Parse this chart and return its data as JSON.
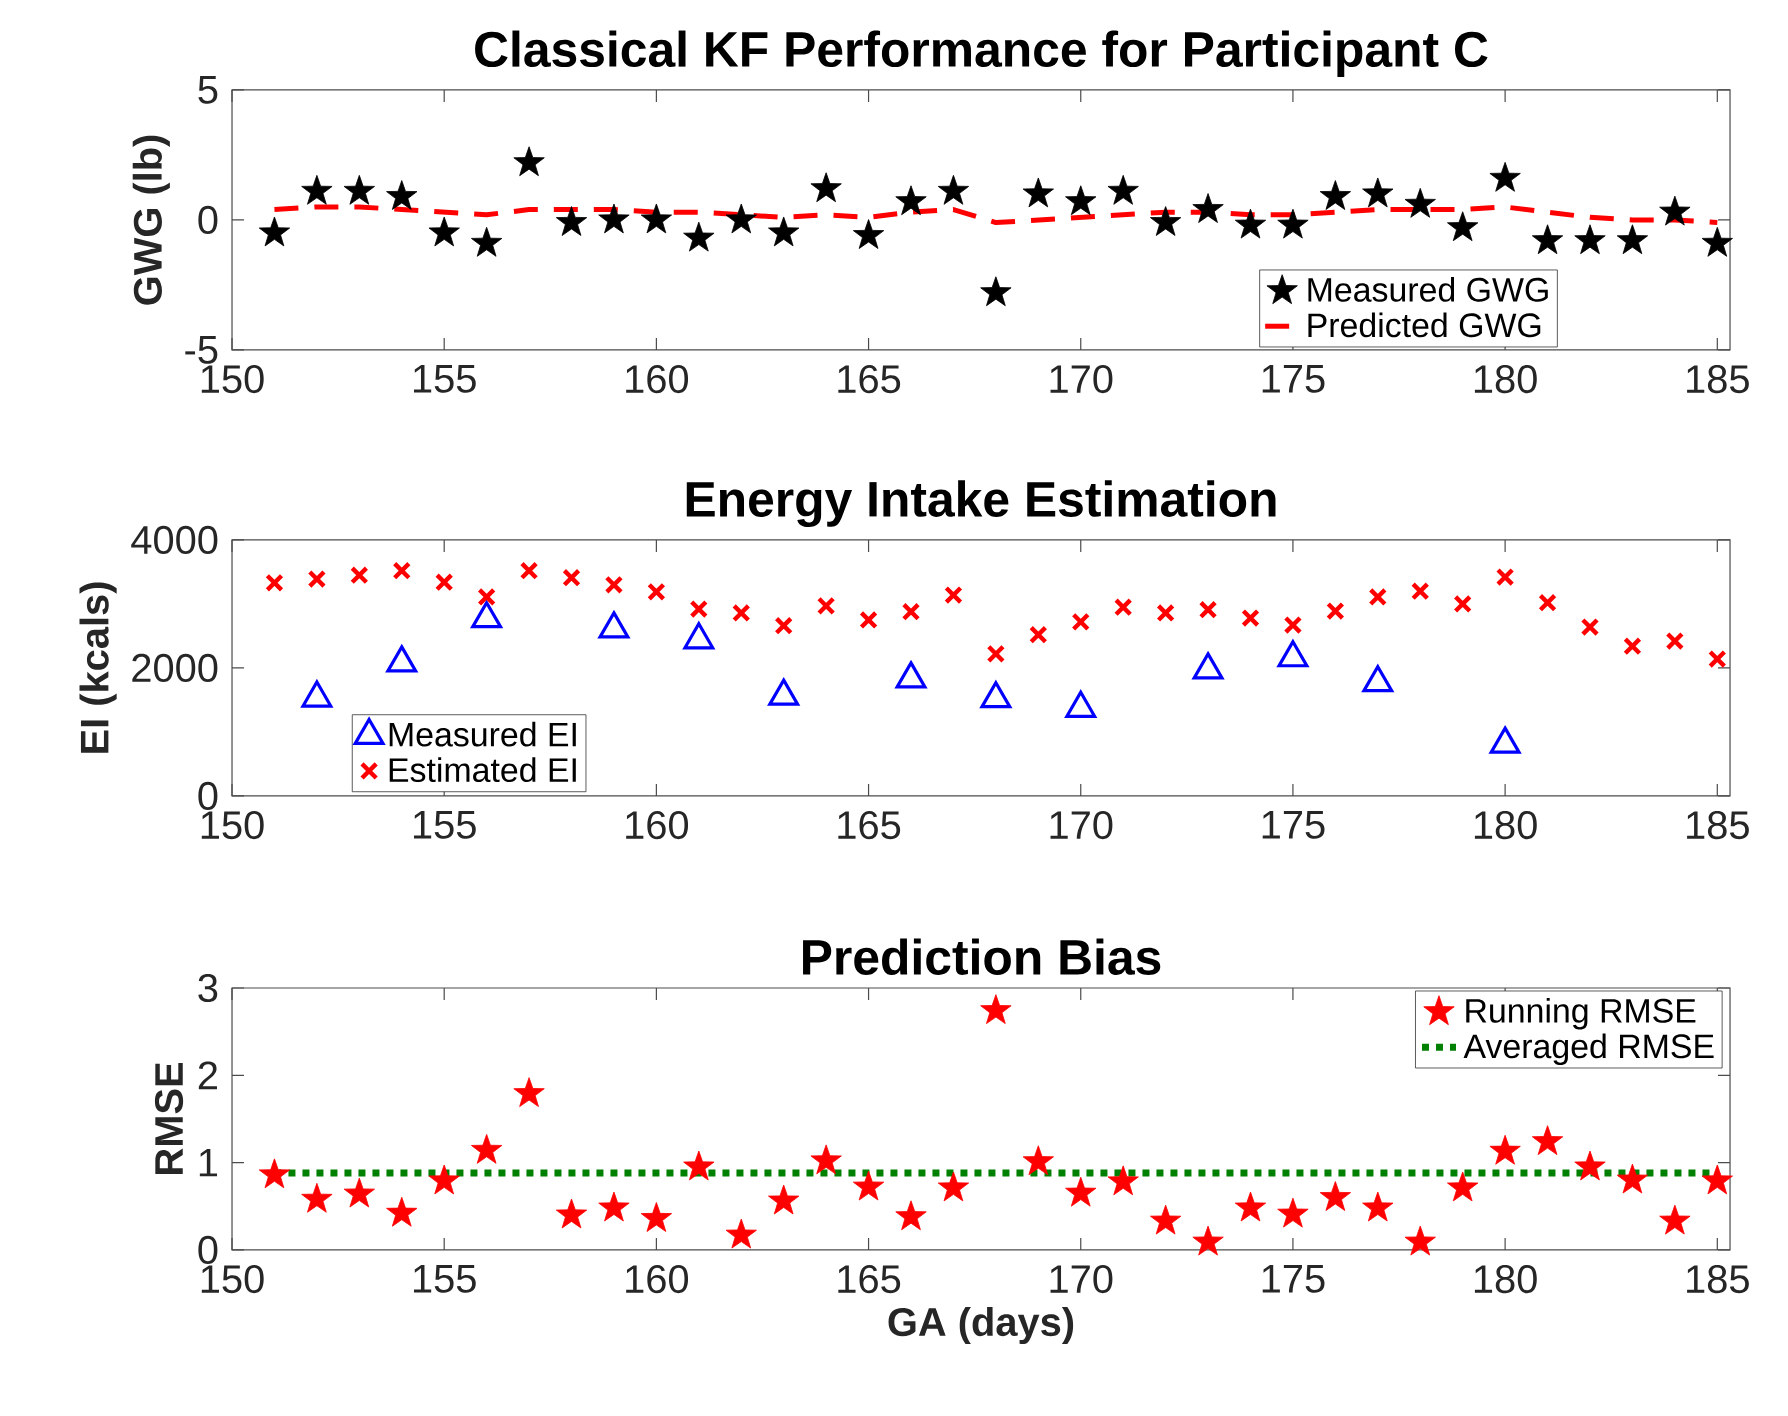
{
  "chart_data": [
    {
      "type": "scatter",
      "title": "Classical KF Performance for Participant C",
      "ylabel": "GWG (lb)",
      "x": [
        151,
        152,
        153,
        154,
        155,
        156,
        157,
        158,
        159,
        160,
        161,
        162,
        163,
        164,
        165,
        166,
        167,
        168,
        169,
        170,
        171,
        172,
        173,
        174,
        175,
        176,
        177,
        178,
        179,
        180,
        181,
        182,
        183,
        184,
        185
      ],
      "series": [
        {
          "name": "Measured GWG",
          "type": "scatter",
          "marker": "star",
          "color": "#000000",
          "values": [
            -0.5,
            1.1,
            1.1,
            0.9,
            -0.5,
            -0.9,
            2.2,
            -0.1,
            0,
            0,
            -0.7,
            0,
            -0.5,
            1.2,
            -0.6,
            0.7,
            1.1,
            -2.8,
            1.0,
            0.7,
            1.1,
            -0.1,
            0.4,
            -0.2,
            -0.2,
            0.9,
            1.0,
            0.6,
            -0.3,
            1.6,
            -0.8,
            -0.8,
            -0.8,
            0.3,
            -0.9
          ]
        },
        {
          "name": "Predicted GWG",
          "type": "line",
          "line_style": "dashed",
          "color": "#ff0000",
          "values": [
            0.4,
            0.5,
            0.5,
            0.4,
            0.3,
            0.2,
            0.4,
            0.4,
            0.4,
            0.3,
            0.3,
            0.2,
            0.1,
            0.2,
            0.1,
            0.3,
            0.4,
            -0.1,
            0.0,
            0.1,
            0.2,
            0.3,
            0.3,
            0.2,
            0.2,
            0.3,
            0.4,
            0.4,
            0.4,
            0.5,
            0.3,
            0.1,
            0.0,
            0.0,
            -0.1
          ]
        }
      ],
      "xlim": [
        150,
        185.3
      ],
      "xticks": [
        150,
        155,
        160,
        165,
        170,
        175,
        180,
        185
      ],
      "ylim": [
        -5,
        5
      ],
      "yticks": [
        -5,
        0,
        5
      ],
      "legend": "bottom right"
    },
    {
      "type": "scatter",
      "title": "Energy Intake Estimation",
      "ylabel": "EI (kcals)",
      "x": [
        151,
        152,
        153,
        154,
        155,
        156,
        157,
        158,
        159,
        160,
        161,
        162,
        163,
        164,
        165,
        166,
        167,
        168,
        169,
        170,
        171,
        172,
        173,
        174,
        175,
        176,
        177,
        178,
        179,
        180,
        181,
        182,
        183,
        184,
        185
      ],
      "series": [
        {
          "name": "Measured EI",
          "type": "scatter",
          "marker": "triangle",
          "color": "#0000ff",
          "x": [
            152,
            154,
            156,
            159,
            161,
            163,
            166,
            168,
            170,
            173,
            175,
            177,
            180
          ],
          "values": [
            1530,
            2080,
            2770,
            2610,
            2440,
            1560,
            1830,
            1520,
            1370,
            1970,
            2160,
            1770,
            810
          ]
        },
        {
          "name": "Estimated EI",
          "type": "scatter",
          "marker": "cross",
          "color": "#ff0000",
          "values": [
            3330,
            3390,
            3450,
            3520,
            3340,
            3110,
            3520,
            3410,
            3300,
            3190,
            2920,
            2860,
            2660,
            2970,
            2750,
            2880,
            3140,
            2220,
            2520,
            2720,
            2950,
            2860,
            2910,
            2780,
            2670,
            2890,
            3110,
            3200,
            3000,
            3420,
            3020,
            2640,
            2340,
            2420,
            2140
          ]
        }
      ],
      "xlim": [
        150,
        185.3
      ],
      "xticks": [
        150,
        155,
        160,
        165,
        170,
        175,
        180,
        185
      ],
      "ylim": [
        0,
        4000
      ],
      "yticks": [
        0,
        2000,
        4000
      ],
      "legend": "bottom left"
    },
    {
      "type": "scatter",
      "title": "Prediction Bias",
      "xlabel": "GA (days)",
      "ylabel": "RMSE",
      "x": [
        151,
        152,
        153,
        154,
        155,
        156,
        157,
        158,
        159,
        160,
        161,
        162,
        163,
        164,
        165,
        166,
        167,
        168,
        169,
        170,
        171,
        172,
        173,
        174,
        175,
        176,
        177,
        178,
        179,
        180,
        181,
        182,
        183,
        184,
        185
      ],
      "series": [
        {
          "name": "Running RMSE",
          "type": "scatter",
          "marker": "star",
          "color": "#ff0000",
          "values": [
            0.86,
            0.58,
            0.64,
            0.42,
            0.79,
            1.14,
            1.79,
            0.4,
            0.48,
            0.36,
            0.95,
            0.17,
            0.56,
            1.02,
            0.72,
            0.38,
            0.71,
            2.74,
            1.01,
            0.65,
            0.78,
            0.33,
            0.09,
            0.48,
            0.41,
            0.6,
            0.48,
            0.09,
            0.71,
            1.13,
            1.24,
            0.95,
            0.8,
            0.33,
            0.79
          ]
        },
        {
          "name": "Averaged RMSE",
          "type": "line",
          "line_style": "dotted",
          "color": "#008000",
          "x": [
            151,
            185
          ],
          "values": [
            0.88,
            0.88
          ]
        }
      ],
      "xlim": [
        150,
        185.3
      ],
      "xticks": [
        150,
        155,
        160,
        165,
        170,
        175,
        180,
        185
      ],
      "ylim": [
        0,
        3
      ],
      "yticks": [
        0,
        1,
        2,
        3
      ],
      "legend": "top right"
    }
  ]
}
